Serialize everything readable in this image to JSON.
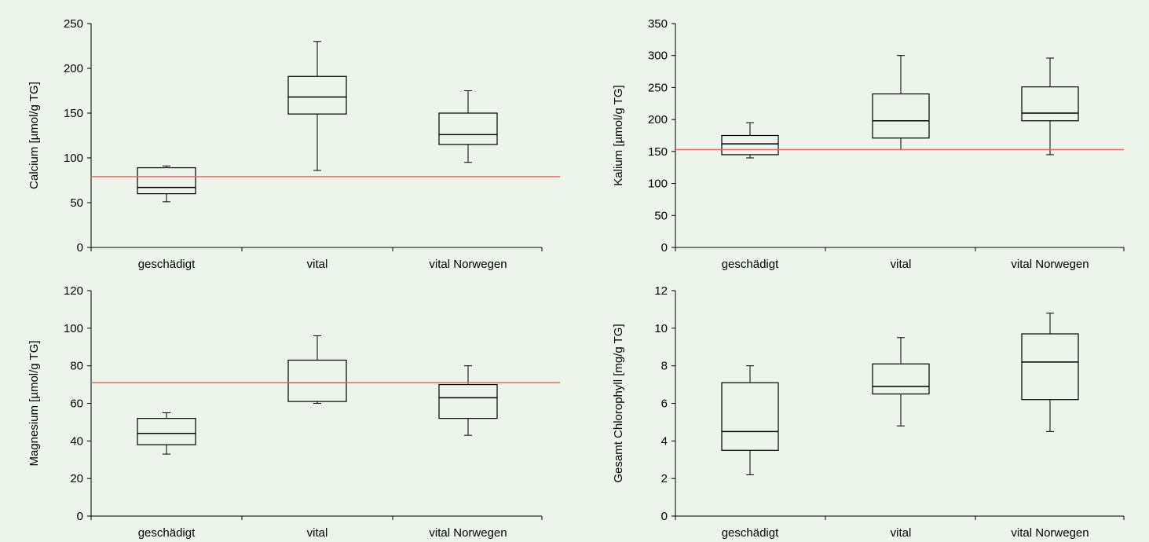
{
  "figure": {
    "background": "#ecf4ec",
    "line_color": "#000000",
    "reference_line_color": "#e06060"
  },
  "chart_data": [
    {
      "type": "box",
      "ylabel": "Calcium [µmol/g TG]",
      "ylim": [
        0,
        250
      ],
      "yticks": [
        0,
        50,
        100,
        150,
        200,
        250
      ],
      "categories": [
        "geschädigt",
        "vital",
        "vital Norwegen"
      ],
      "boxes": [
        {
          "min": 51,
          "q1": 60,
          "median": 67,
          "q3": 89,
          "max": 91
        },
        {
          "min": 86,
          "q1": 149,
          "median": 168,
          "q3": 191,
          "max": 230
        },
        {
          "min": 95,
          "q1": 115,
          "median": 126,
          "q3": 150,
          "max": 175
        }
      ],
      "reference_line": 79,
      "grid": false
    },
    {
      "type": "box",
      "ylabel": "Kalium [µmol/g TG]",
      "ylim": [
        0,
        350
      ],
      "yticks": [
        0,
        50,
        100,
        150,
        200,
        250,
        300,
        350
      ],
      "categories": [
        "geschädigt",
        "vital",
        "vital Norwegen"
      ],
      "boxes": [
        {
          "min": 140,
          "q1": 145,
          "median": 162,
          "q3": 175,
          "max": 195
        },
        {
          "min": 153,
          "q1": 171,
          "median": 198,
          "q3": 240,
          "max": 300
        },
        {
          "min": 145,
          "q1": 198,
          "median": 210,
          "q3": 251,
          "max": 296
        }
      ],
      "reference_line": 153,
      "grid": false
    },
    {
      "type": "box",
      "ylabel": "Magnesium [µmol/g TG]",
      "ylim": [
        0,
        120
      ],
      "yticks": [
        0,
        20,
        40,
        60,
        80,
        100,
        120
      ],
      "categories": [
        "geschädigt",
        "vital",
        "vital Norwegen"
      ],
      "boxes": [
        {
          "min": 33,
          "q1": 38,
          "median": 44,
          "q3": 52,
          "max": 55
        },
        {
          "min": 60,
          "q1": 61,
          "median": 71,
          "q3": 83,
          "max": 96
        },
        {
          "min": 43,
          "q1": 52,
          "median": 63,
          "q3": 70,
          "max": 80
        }
      ],
      "reference_line": 71,
      "grid": false
    },
    {
      "type": "box",
      "ylabel": "Gesamt Chlorophyll [mg/g TG]",
      "ylim": [
        0,
        12
      ],
      "yticks": [
        0,
        2,
        4,
        6,
        8,
        10,
        12
      ],
      "categories": [
        "geschädigt",
        "vital",
        "vital Norwegen"
      ],
      "boxes": [
        {
          "min": 2.2,
          "q1": 3.5,
          "median": 4.5,
          "q3": 7.1,
          "max": 8.0
        },
        {
          "min": 4.8,
          "q1": 6.5,
          "median": 6.9,
          "q3": 8.1,
          "max": 9.5
        },
        {
          "min": 4.5,
          "q1": 6.2,
          "median": 8.2,
          "q3": 9.7,
          "max": 10.8
        }
      ],
      "reference_line": null,
      "grid": false
    }
  ]
}
